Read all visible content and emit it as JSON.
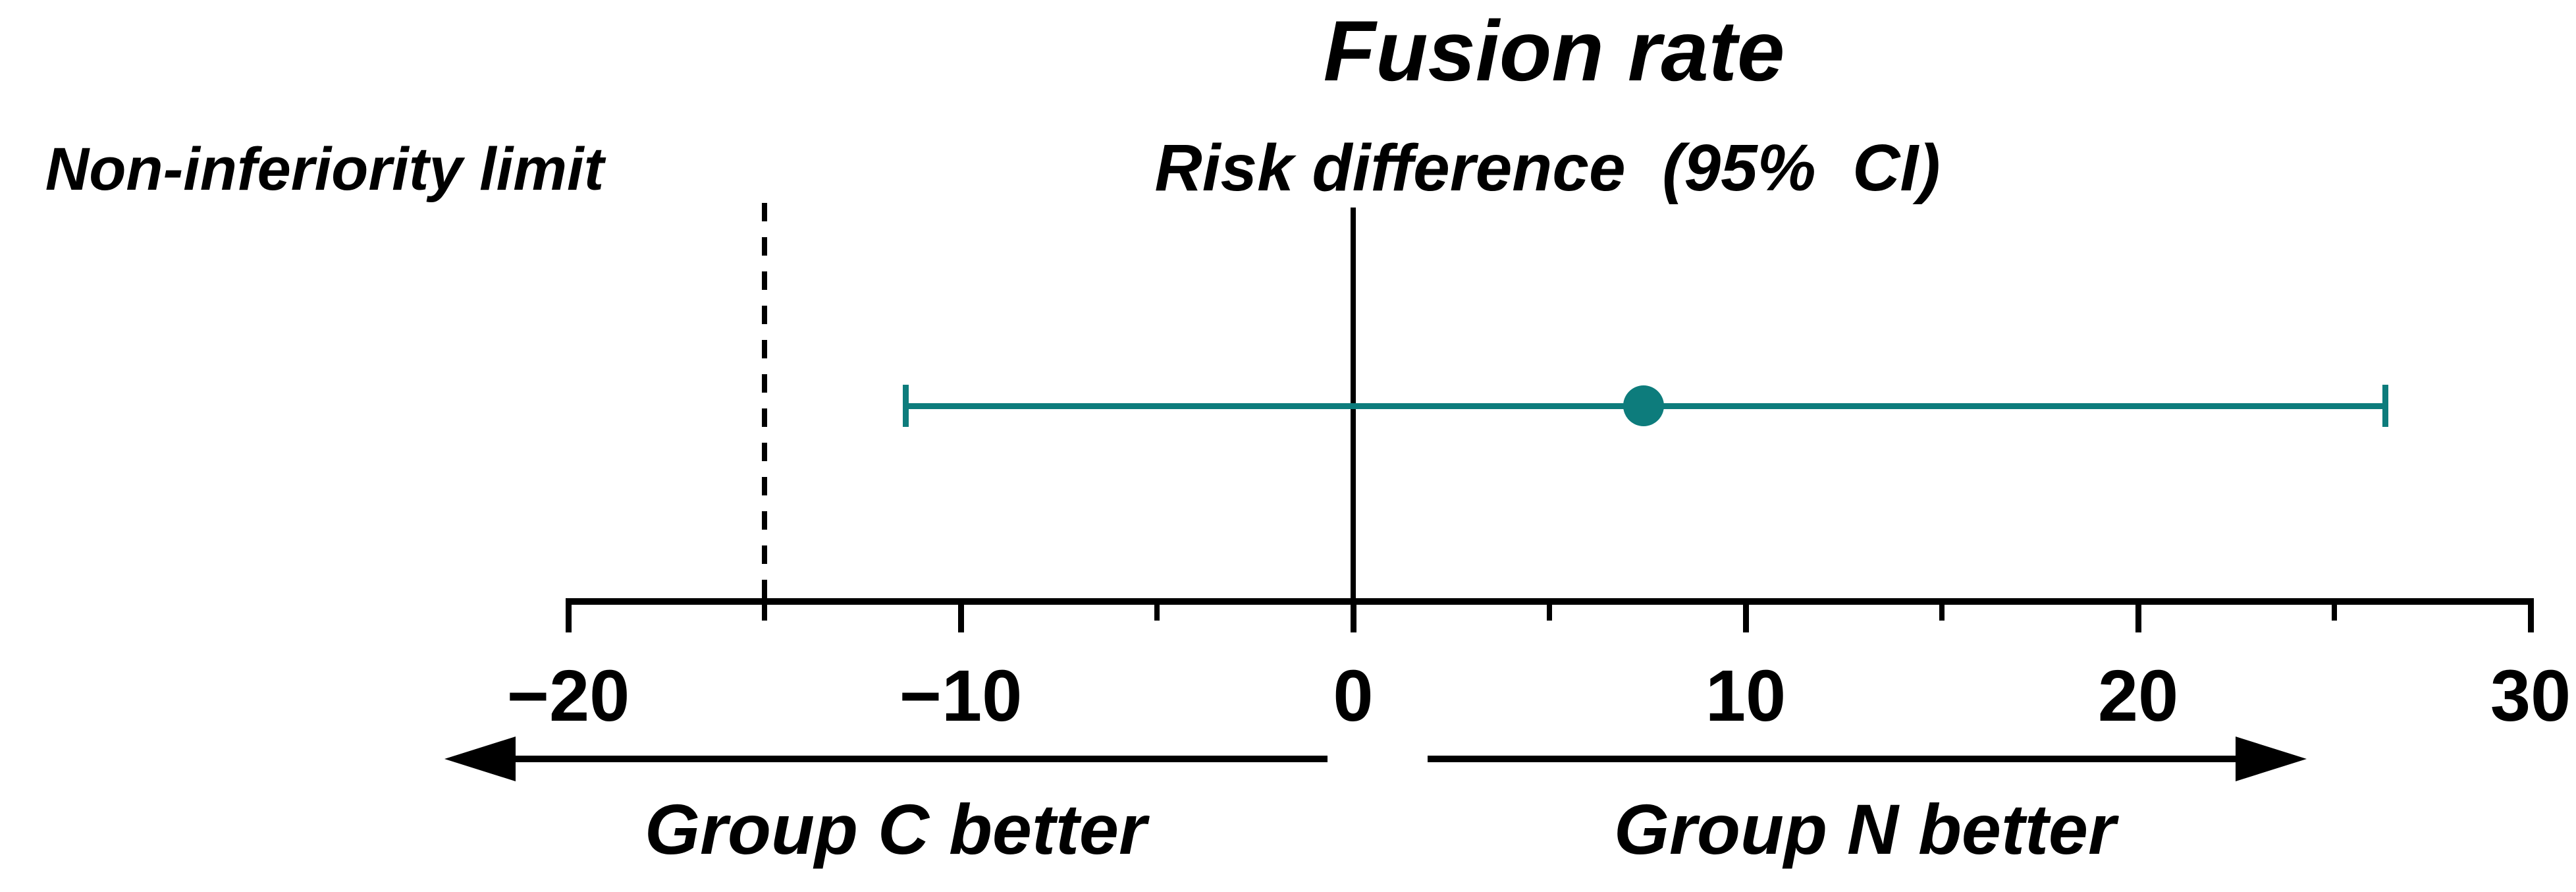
{
  "figure": {
    "title": "Fusion rate",
    "subtitle": "Risk difference  (95%  CI)",
    "non_inferiority_label": "Non-inferiority limit",
    "group_left_label": "Group C better",
    "group_right_label": "Group N better"
  },
  "chart_data": {
    "type": "scatter",
    "variant": "forest-plot-non-inferiority",
    "title": "Fusion rate",
    "measure_label": "Risk difference  (95%  CI)",
    "x_axis": {
      "range": [
        -20,
        30
      ],
      "major_ticks": [
        {
          "value": -20,
          "label": "−20"
        },
        {
          "value": -10,
          "label": "−10"
        },
        {
          "value": 0,
          "label": "0"
        },
        {
          "value": 10,
          "label": "10"
        },
        {
          "value": 20,
          "label": "20"
        },
        {
          "value": 30,
          "label": "30"
        }
      ],
      "minor_ticks": [
        -15,
        -5,
        5,
        15,
        25
      ]
    },
    "reference_line_x": 0,
    "non_inferiority_limit_x": -15,
    "non_inferiority_limit_label": "Non-inferiority limit",
    "estimate": {
      "name": "Risk difference",
      "point": 7.4,
      "ci_lower": -11.4,
      "ci_upper": 26.3
    },
    "direction_labels": {
      "left": "Group C better",
      "right": "Group N better"
    },
    "legend": "none",
    "grid": "off",
    "colors": {
      "estimate": "#0d7c7c",
      "axis": "#000000",
      "background": "#ffffff"
    }
  }
}
